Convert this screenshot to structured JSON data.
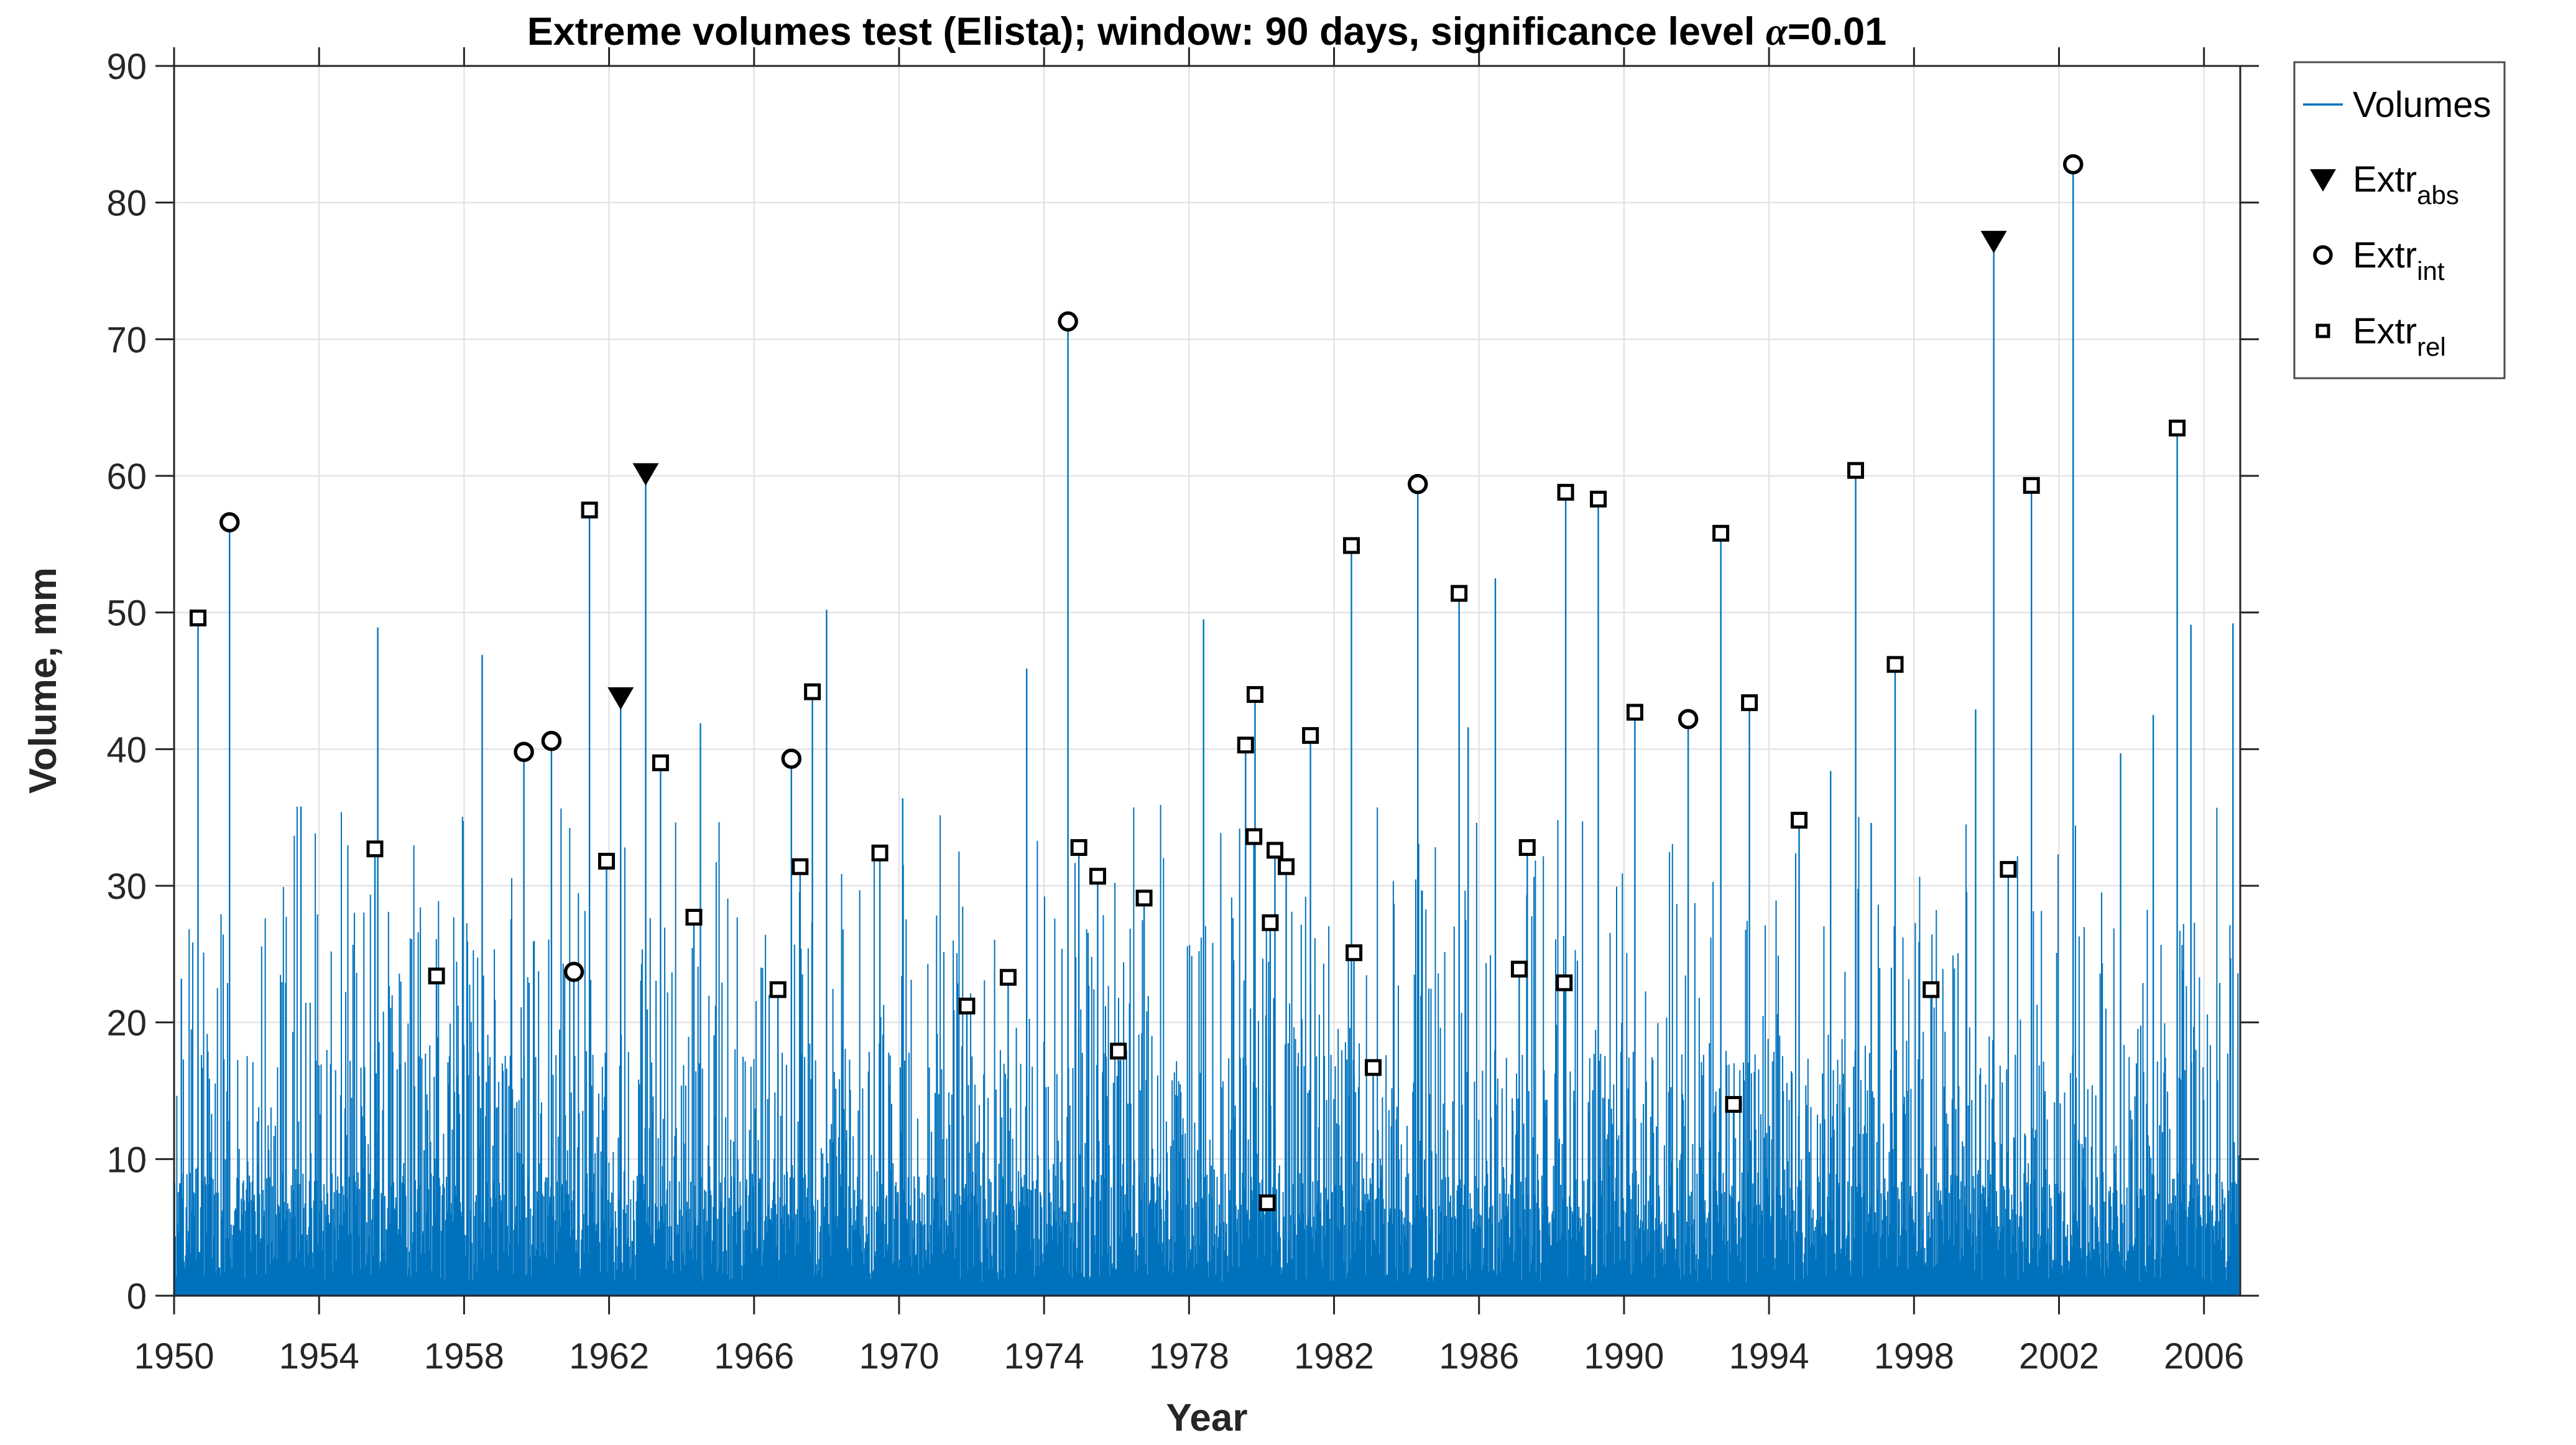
{
  "figure": {
    "background": "#ffffff"
  },
  "title": {
    "part1": "Extreme volumes test (Elista); window: 90 days, significance level ",
    "alpha": "α",
    "part2": "=0.01"
  },
  "legend": {
    "items": [
      {
        "label": "Volumes"
      },
      {
        "main": "Extr",
        "sub": "abs"
      },
      {
        "main": "Extr",
        "sub": "int"
      },
      {
        "main": "Extr",
        "sub": "rel"
      }
    ]
  },
  "chart_data": {
    "type": "stem",
    "title": "Extreme volumes test (Elista); window: 90 days, significance level α=0.01",
    "xlabel": "Year",
    "ylabel": "Volume, mm",
    "xlim": [
      1950,
      2007
    ],
    "ylim": [
      0,
      90
    ],
    "xticks": [
      1950,
      1954,
      1958,
      1962,
      1966,
      1970,
      1974,
      1978,
      1982,
      1986,
      1990,
      1994,
      1998,
      2002,
      2006
    ],
    "yticks": [
      0,
      10,
      20,
      30,
      40,
      50,
      60,
      70,
      80,
      90
    ],
    "grid": true,
    "legend_position": "outside-top-right",
    "tick_direction": "out",
    "colors": {
      "volumes": "#0072BD",
      "markers": "#000000",
      "grid": "#dedede",
      "axis": "#262626"
    },
    "series": [
      {
        "name": "Volumes",
        "type": "stem-line",
        "description": "Dense daily precipitation volumes 1950-2007, mostly 0-30 mm noise with occasional peaks to ~50 mm"
      },
      {
        "name": "Extr_abs",
        "type": "scatter",
        "marker": "filled-triangle-down",
        "points": [
          [
            1962.32,
            43.8
          ],
          [
            1963.01,
            60.2
          ],
          [
            2000.2,
            77.2
          ]
        ]
      },
      {
        "name": "Extr_int",
        "type": "scatter",
        "marker": "open-circle",
        "points": [
          [
            1951.53,
            56.6
          ],
          [
            1959.65,
            39.8
          ],
          [
            1960.41,
            40.6
          ],
          [
            1961.03,
            23.7
          ],
          [
            1967.03,
            39.3
          ],
          [
            1974.66,
            71.3
          ],
          [
            1984.31,
            59.4
          ],
          [
            1991.77,
            42.2
          ],
          [
            2002.39,
            82.8
          ]
        ]
      },
      {
        "name": "Extr_rel",
        "type": "scatter",
        "marker": "open-square",
        "points": [
          [
            1950.66,
            49.6
          ],
          [
            1955.54,
            32.7
          ],
          [
            1957.24,
            23.4
          ],
          [
            1961.46,
            57.5
          ],
          [
            1961.93,
            31.8
          ],
          [
            1963.42,
            39.0
          ],
          [
            1964.34,
            27.7
          ],
          [
            1966.66,
            22.4
          ],
          [
            1967.27,
            31.4
          ],
          [
            1967.61,
            44.2
          ],
          [
            1969.47,
            32.4
          ],
          [
            1971.87,
            21.2
          ],
          [
            1973.01,
            23.3
          ],
          [
            1974.96,
            32.8
          ],
          [
            1975.48,
            30.7
          ],
          [
            1976.05,
            17.9
          ],
          [
            1976.76,
            29.1
          ],
          [
            1979.56,
            40.3
          ],
          [
            1979.79,
            33.6
          ],
          [
            1979.82,
            44.0
          ],
          [
            1980.16,
            6.8
          ],
          [
            1980.24,
            27.3
          ],
          [
            1980.37,
            32.6
          ],
          [
            1980.68,
            31.4
          ],
          [
            1981.35,
            41.0
          ],
          [
            1982.48,
            54.9
          ],
          [
            1982.55,
            25.1
          ],
          [
            1983.08,
            16.7
          ],
          [
            1985.45,
            51.4
          ],
          [
            1987.11,
            23.9
          ],
          [
            1987.33,
            32.8
          ],
          [
            1988.35,
            22.9
          ],
          [
            1988.39,
            58.8
          ],
          [
            1989.29,
            58.3
          ],
          [
            1990.3,
            42.7
          ],
          [
            1992.67,
            55.8
          ],
          [
            1993.02,
            14.0
          ],
          [
            1993.46,
            43.4
          ],
          [
            1994.83,
            34.8
          ],
          [
            1996.39,
            60.4
          ],
          [
            1997.48,
            46.2
          ],
          [
            1998.47,
            22.4
          ],
          [
            2000.6,
            31.2
          ],
          [
            2001.24,
            59.3
          ],
          [
            2005.26,
            63.5
          ]
        ]
      }
    ],
    "volumes_notable_peaks": [
      [
        1950.2,
        23.2
      ],
      [
        1953.5,
        35.8
      ],
      [
        1955.62,
        48.9
      ],
      [
        1958.5,
        46.9
      ],
      [
        1964.52,
        41.9
      ],
      [
        1968.0,
        50.2
      ],
      [
        1970.1,
        36.4
      ],
      [
        1973.52,
        45.9
      ],
      [
        1978.4,
        49.5
      ],
      [
        1985.7,
        41.6
      ],
      [
        1986.45,
        52.5
      ],
      [
        1995.7,
        38.4
      ],
      [
        1996.82,
        34.6
      ],
      [
        1999.7,
        42.9
      ],
      [
        2003.7,
        39.7
      ],
      [
        2004.6,
        42.5
      ],
      [
        2005.64,
        49.1
      ],
      [
        2006.8,
        49.2
      ]
    ],
    "noise": {
      "seed": 20071950,
      "step_years": 0.02,
      "max": 36
    }
  }
}
